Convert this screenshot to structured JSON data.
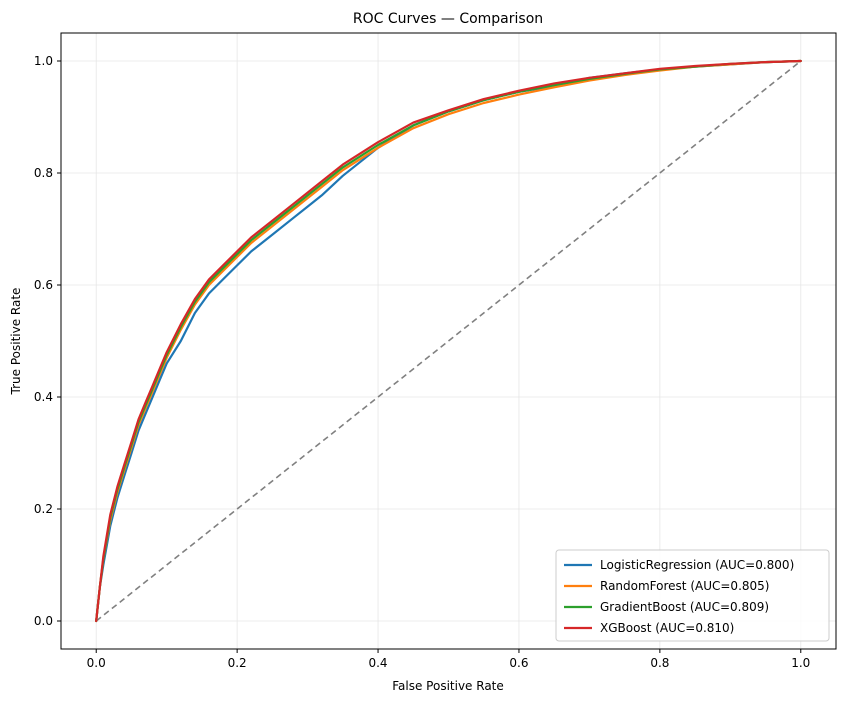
{
  "chart_data": {
    "type": "line",
    "title": "ROC Curves — Comparison",
    "xlabel": "False Positive Rate",
    "ylabel": "True Positive Rate",
    "xlim": [
      -0.05,
      1.05
    ],
    "ylim": [
      -0.05,
      1.05
    ],
    "xticks": [
      0.0,
      0.2,
      0.4,
      0.6,
      0.8,
      1.0
    ],
    "yticks": [
      0.0,
      0.2,
      0.4,
      0.6,
      0.8,
      1.0
    ],
    "xtick_labels": [
      "0.0",
      "0.2",
      "0.4",
      "0.6",
      "0.8",
      "1.0"
    ],
    "ytick_labels": [
      "0.0",
      "0.2",
      "0.4",
      "0.6",
      "0.8",
      "1.0"
    ],
    "grid": true,
    "legend_position": "lower-right",
    "series": [
      {
        "name": "LogisticRegression (AUC=0.800)",
        "color": "#1f77b4",
        "x": [
          0,
          0.005,
          0.01,
          0.02,
          0.03,
          0.04,
          0.05,
          0.06,
          0.07,
          0.08,
          0.09,
          0.1,
          0.12,
          0.14,
          0.16,
          0.18,
          0.2,
          0.22,
          0.25,
          0.28,
          0.3,
          0.32,
          0.35,
          0.4,
          0.45,
          0.5,
          0.55,
          0.6,
          0.65,
          0.7,
          0.75,
          0.8,
          0.85,
          0.9,
          0.95,
          1.0
        ],
        "y": [
          0,
          0.06,
          0.1,
          0.17,
          0.22,
          0.26,
          0.3,
          0.34,
          0.37,
          0.4,
          0.43,
          0.46,
          0.5,
          0.55,
          0.585,
          0.61,
          0.635,
          0.66,
          0.69,
          0.72,
          0.74,
          0.76,
          0.795,
          0.845,
          0.885,
          0.91,
          0.93,
          0.945,
          0.955,
          0.97,
          0.978,
          0.985,
          0.99,
          0.994,
          0.998,
          1.0
        ]
      },
      {
        "name": "RandomForest (AUC=0.805)",
        "color": "#ff7f0e",
        "x": [
          0,
          0.005,
          0.01,
          0.02,
          0.03,
          0.04,
          0.05,
          0.06,
          0.07,
          0.08,
          0.09,
          0.1,
          0.12,
          0.14,
          0.16,
          0.18,
          0.2,
          0.22,
          0.25,
          0.28,
          0.3,
          0.32,
          0.35,
          0.4,
          0.45,
          0.5,
          0.55,
          0.6,
          0.65,
          0.7,
          0.75,
          0.8,
          0.85,
          0.9,
          0.95,
          1.0
        ],
        "y": [
          0,
          0.06,
          0.11,
          0.18,
          0.23,
          0.27,
          0.31,
          0.35,
          0.38,
          0.41,
          0.44,
          0.47,
          0.52,
          0.565,
          0.6,
          0.625,
          0.65,
          0.675,
          0.705,
          0.735,
          0.755,
          0.775,
          0.805,
          0.845,
          0.88,
          0.905,
          0.925,
          0.94,
          0.953,
          0.965,
          0.975,
          0.983,
          0.99,
          0.994,
          0.998,
          1.0
        ]
      },
      {
        "name": "GradientBoost (AUC=0.809)",
        "color": "#2ca02c",
        "x": [
          0,
          0.005,
          0.01,
          0.02,
          0.03,
          0.04,
          0.05,
          0.06,
          0.07,
          0.08,
          0.09,
          0.1,
          0.12,
          0.14,
          0.16,
          0.18,
          0.2,
          0.22,
          0.25,
          0.28,
          0.3,
          0.32,
          0.35,
          0.4,
          0.45,
          0.5,
          0.55,
          0.6,
          0.65,
          0.7,
          0.75,
          0.8,
          0.85,
          0.9,
          0.95,
          1.0
        ],
        "y": [
          0,
          0.06,
          0.11,
          0.185,
          0.235,
          0.275,
          0.315,
          0.355,
          0.385,
          0.415,
          0.445,
          0.475,
          0.525,
          0.57,
          0.605,
          0.63,
          0.655,
          0.68,
          0.71,
          0.74,
          0.76,
          0.78,
          0.81,
          0.85,
          0.885,
          0.91,
          0.93,
          0.945,
          0.957,
          0.968,
          0.977,
          0.985,
          0.99,
          0.995,
          0.998,
          1.0
        ]
      },
      {
        "name": "XGBoost (AUC=0.810)",
        "color": "#d62728",
        "x": [
          0,
          0.005,
          0.01,
          0.02,
          0.03,
          0.04,
          0.05,
          0.06,
          0.07,
          0.08,
          0.09,
          0.1,
          0.12,
          0.14,
          0.16,
          0.18,
          0.2,
          0.22,
          0.25,
          0.28,
          0.3,
          0.32,
          0.35,
          0.4,
          0.45,
          0.5,
          0.55,
          0.6,
          0.65,
          0.7,
          0.75,
          0.8,
          0.85,
          0.9,
          0.95,
          1.0
        ],
        "y": [
          0,
          0.06,
          0.115,
          0.19,
          0.24,
          0.28,
          0.32,
          0.36,
          0.39,
          0.42,
          0.45,
          0.48,
          0.53,
          0.575,
          0.61,
          0.635,
          0.66,
          0.685,
          0.715,
          0.745,
          0.765,
          0.785,
          0.815,
          0.855,
          0.89,
          0.912,
          0.932,
          0.947,
          0.96,
          0.97,
          0.978,
          0.986,
          0.991,
          0.995,
          0.998,
          1.0
        ]
      }
    ],
    "reference_line": {
      "x": [
        0,
        1
      ],
      "y": [
        0,
        1
      ],
      "color": "#808080",
      "style": "dashed"
    }
  }
}
